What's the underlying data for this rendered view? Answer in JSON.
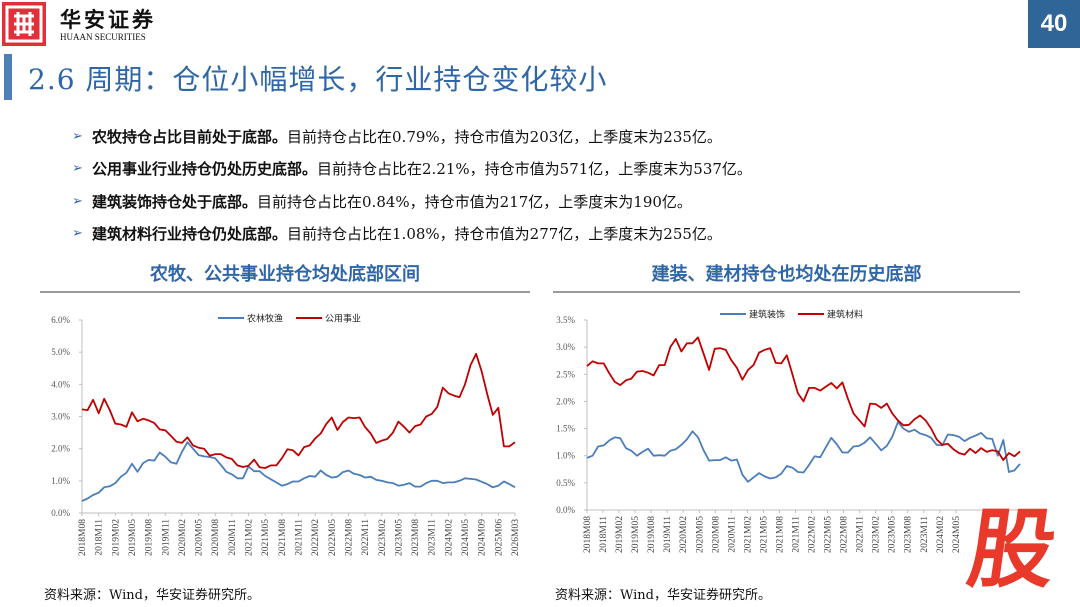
{
  "header": {
    "logo_cn": "华安证券",
    "logo_en": "HUAAN SECURITIES",
    "page_number": "40",
    "title": "2.6 周期：仓位小幅增长，行业持仓变化较小"
  },
  "bullets": [
    {
      "bold": "农牧持仓占比目前处于底部。",
      "text": "目前持仓占比在0.79%，持仓市值为203亿，上季度末为235亿。"
    },
    {
      "bold": "公用事业行业持仓仍处历史底部。",
      "text": "目前持仓占比在2.21%，持仓市值为571亿，上季度末为537亿。"
    },
    {
      "bold": "建筑装饰持仓处于底部。",
      "text": "目前持仓占比在0.84%，持仓市值为217亿，上季度末为190亿。"
    },
    {
      "bold": "建筑材料行业持仓仍处底部。",
      "text": "目前持仓占比在1.08%，持仓市值为277亿，上季度末为255亿。"
    }
  ],
  "colors": {
    "blue_series": "#4a7ebb",
    "red_series": "#c00000",
    "title_blue": "#2f66a8",
    "page_box": "#2f6597",
    "logo_red": "#e8392b"
  },
  "left_panel": {
    "title": "农牧、公共事业持仓均处底部区间",
    "source": "资料来源：Wind，华安证券研究所。"
  },
  "right_panel": {
    "title": "建装、建材持仓也均处在历史底部",
    "source": "资料来源：Wind，华安证券研究所。"
  },
  "watermark_logo": "股",
  "chart_data": [
    {
      "type": "line",
      "ylim": [
        0,
        6
      ],
      "y_ticks": [
        "0.0%",
        "1.0%",
        "2.0%",
        "3.0%",
        "4.0%",
        "5.0%",
        "6.0%"
      ],
      "x_tick_labels": [
        "2018M08",
        "2018M11",
        "2019M02",
        "2019M05",
        "2019M08",
        "2019M11",
        "2020M02",
        "2020M05",
        "2020M08",
        "2020M11",
        "2021M02",
        "2021M05",
        "2021M08",
        "2021M11",
        "2022M02",
        "2022M05",
        "2022M08",
        "2022M11",
        "2023M02",
        "2023M05",
        "2023M08",
        "2023M11",
        "2024M02",
        "2024M05",
        "2024M09",
        "2025M06",
        "2026M03"
      ],
      "legend": "top",
      "series": [
        {
          "name": "农林牧渔",
          "color": "#4a7ebb",
          "values": [
            0.37,
            0.45,
            0.56,
            0.63,
            0.8,
            0.83,
            0.93,
            1.13,
            1.25,
            1.53,
            1.28,
            1.55,
            1.65,
            1.63,
            1.88,
            1.75,
            1.58,
            1.53,
            1.9,
            2.2,
            2.0,
            1.8,
            1.76,
            1.74,
            1.7,
            1.5,
            1.28,
            1.2,
            1.08,
            1.08,
            1.45,
            1.3,
            1.3,
            1.15,
            1.05,
            0.95,
            0.85,
            0.9,
            0.98,
            0.98,
            1.08,
            1.15,
            1.13,
            1.32,
            1.18,
            1.1,
            1.13,
            1.27,
            1.32,
            1.22,
            1.18,
            1.1,
            1.13,
            1.03,
            1.0,
            0.95,
            0.93,
            0.85,
            0.88,
            0.93,
            0.82,
            0.82,
            0.93,
            1.0,
            1.0,
            0.93,
            0.95,
            0.95,
            1.0,
            1.08,
            1.06,
            1.04,
            0.97,
            0.9,
            0.8,
            0.85,
            0.98,
            0.9,
            0.8
          ]
        },
        {
          "name": "公用事业",
          "color": "#c00000",
          "values": [
            3.22,
            3.2,
            3.52,
            3.1,
            3.55,
            3.2,
            2.78,
            2.75,
            2.68,
            3.13,
            2.85,
            2.93,
            2.88,
            2.8,
            2.6,
            2.57,
            2.4,
            2.22,
            2.18,
            2.35,
            2.1,
            2.03,
            2.0,
            1.78,
            1.83,
            1.83,
            1.73,
            1.68,
            1.48,
            1.43,
            1.47,
            1.66,
            1.42,
            1.4,
            1.48,
            1.48,
            1.7,
            1.98,
            1.95,
            1.79,
            2.05,
            2.1,
            2.32,
            2.47,
            2.77,
            2.97,
            2.58,
            2.83,
            2.97,
            2.95,
            2.97,
            2.67,
            2.47,
            2.18,
            2.25,
            2.3,
            2.5,
            2.84,
            2.68,
            2.5,
            2.7,
            2.75,
            3.0,
            3.08,
            3.3,
            3.9,
            3.72,
            3.65,
            3.6,
            4.0,
            4.6,
            4.95,
            4.4,
            3.7,
            3.05,
            3.27,
            2.07,
            2.07,
            2.2
          ]
        }
      ]
    },
    {
      "type": "line",
      "ylim": [
        0,
        3.5
      ],
      "y_ticks": [
        "0.0%",
        "0.5%",
        "1.0%",
        "1.5%",
        "2.0%",
        "2.5%",
        "3.0%",
        "3.5%"
      ],
      "x_tick_labels": [
        "2018M08",
        "2018M11",
        "2019M02",
        "2019M05",
        "2019M08",
        "2019M11",
        "2020M02",
        "2020M05",
        "2020M08",
        "2020M11",
        "2021M02",
        "2021M05",
        "2021M08",
        "2021M11",
        "2022M02",
        "2022M05",
        "2022M08",
        "2022M11",
        "2023M02",
        "2023M05",
        "2023M08",
        "2023M11",
        "2024M02",
        "2024M05"
      ],
      "legend": "top",
      "series": [
        {
          "name": "建筑装饰",
          "color": "#4a7ebb",
          "values": [
            0.96,
            1.0,
            1.17,
            1.19,
            1.28,
            1.34,
            1.32,
            1.14,
            1.09,
            1.0,
            1.07,
            1.13,
            1.0,
            1.01,
            1.0,
            1.09,
            1.12,
            1.2,
            1.3,
            1.45,
            1.34,
            1.1,
            0.91,
            0.92,
            0.92,
            0.97,
            0.91,
            0.93,
            0.65,
            0.52,
            0.6,
            0.68,
            0.62,
            0.58,
            0.6,
            0.67,
            0.81,
            0.78,
            0.7,
            0.69,
            0.83,
            0.99,
            0.97,
            1.15,
            1.33,
            1.21,
            1.06,
            1.06,
            1.17,
            1.18,
            1.24,
            1.34,
            1.22,
            1.1,
            1.18,
            1.35,
            1.62,
            1.5,
            1.44,
            1.48,
            1.41,
            1.38,
            1.33,
            1.2,
            1.19,
            1.39,
            1.38,
            1.35,
            1.27,
            1.33,
            1.37,
            1.42,
            1.32,
            1.31,
            1.0,
            1.29,
            0.7,
            0.73,
            0.85
          ]
        },
        {
          "name": "建筑材料",
          "color": "#c00000",
          "values": [
            2.65,
            2.74,
            2.7,
            2.7,
            2.52,
            2.36,
            2.3,
            2.39,
            2.42,
            2.55,
            2.56,
            2.53,
            2.48,
            2.67,
            2.67,
            3.0,
            3.15,
            2.92,
            3.07,
            3.07,
            3.18,
            2.88,
            2.58,
            2.97,
            2.98,
            2.95,
            2.76,
            2.62,
            2.4,
            2.58,
            2.67,
            2.9,
            2.95,
            2.98,
            2.71,
            2.7,
            2.85,
            2.5,
            2.15,
            2.0,
            2.25,
            2.25,
            2.2,
            2.27,
            2.34,
            2.24,
            2.35,
            2.05,
            1.78,
            1.66,
            1.54,
            1.96,
            1.95,
            1.88,
            1.96,
            1.78,
            1.65,
            1.56,
            1.57,
            1.67,
            1.74,
            1.65,
            1.5,
            1.3,
            1.2,
            1.22,
            1.12,
            1.05,
            1.02,
            1.13,
            1.05,
            1.14,
            1.07,
            1.1,
            1.08,
            0.92,
            1.05,
            0.99,
            1.08
          ]
        }
      ]
    }
  ]
}
